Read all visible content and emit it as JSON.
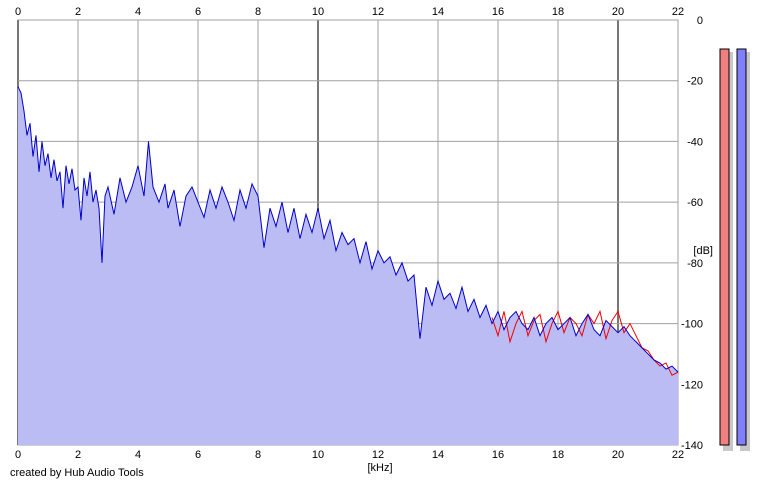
{
  "credit": "created by Hub Audio Tools",
  "chart_data": {
    "type": "area",
    "xlabel": "[kHz]",
    "ylabel": "[dB]",
    "xlim": [
      0,
      22
    ],
    "ylim": [
      -140,
      0
    ],
    "xticks": [
      0,
      2,
      4,
      6,
      8,
      10,
      12,
      14,
      16,
      18,
      20,
      22
    ],
    "yticks": [
      0,
      -20,
      -40,
      -60,
      -80,
      -100,
      -120,
      -140
    ],
    "grid": true,
    "series": [
      {
        "color": "#0000cc",
        "fill": "#bcbcf5",
        "x": [
          0,
          0.1,
          0.2,
          0.3,
          0.4,
          0.5,
          0.6,
          0.7,
          0.8,
          0.9,
          1.0,
          1.1,
          1.2,
          1.3,
          1.4,
          1.5,
          1.6,
          1.7,
          1.8,
          1.9,
          2.0,
          2.1,
          2.2,
          2.3,
          2.4,
          2.5,
          2.6,
          2.7,
          2.8,
          2.9,
          3.0,
          3.2,
          3.4,
          3.6,
          3.8,
          4.0,
          4.2,
          4.35,
          4.5,
          4.7,
          4.9,
          5.0,
          5.2,
          5.4,
          5.6,
          5.8,
          6.0,
          6.2,
          6.4,
          6.6,
          6.8,
          7.0,
          7.2,
          7.4,
          7.6,
          7.8,
          8.0,
          8.2,
          8.4,
          8.6,
          8.8,
          9.0,
          9.2,
          9.4,
          9.6,
          9.8,
          10.0,
          10.2,
          10.4,
          10.6,
          10.8,
          11.0,
          11.2,
          11.4,
          11.6,
          11.8,
          12.0,
          12.2,
          12.4,
          12.6,
          12.8,
          13.0,
          13.2,
          13.4,
          13.6,
          13.8,
          14.0,
          14.2,
          14.4,
          14.6,
          14.8,
          15.0,
          15.2,
          15.4,
          15.6,
          15.8,
          16.0,
          16.2,
          16.4,
          16.6,
          16.8,
          17.0,
          17.2,
          17.4,
          17.6,
          17.8,
          18.0,
          18.2,
          18.4,
          18.6,
          18.8,
          19.0,
          19.2,
          19.4,
          19.6,
          19.8,
          20.0,
          20.2,
          20.4,
          20.6,
          20.8,
          21.0,
          21.2,
          21.4,
          21.6,
          21.8,
          22.0
        ],
        "values": [
          -22,
          -24,
          -30,
          -38,
          -34,
          -45,
          -38,
          -50,
          -40,
          -48,
          -44,
          -52,
          -46,
          -53,
          -50,
          -62,
          -48,
          -54,
          -49,
          -56,
          -55,
          -66,
          -52,
          -58,
          -50,
          -60,
          -56,
          -62,
          -80,
          -58,
          -55,
          -64,
          -52,
          -60,
          -55,
          -48,
          -58,
          -40,
          -55,
          -60,
          -54,
          -62,
          -56,
          -68,
          -58,
          -55,
          -60,
          -65,
          -56,
          -62,
          -55,
          -60,
          -66,
          -56,
          -62,
          -54,
          -58,
          -75,
          -62,
          -68,
          -60,
          -70,
          -62,
          -72,
          -64,
          -70,
          -62,
          -72,
          -66,
          -76,
          -70,
          -74,
          -72,
          -80,
          -73,
          -82,
          -76,
          -80,
          -78,
          -84,
          -80,
          -86,
          -84,
          -105,
          -88,
          -94,
          -86,
          -92,
          -90,
          -95,
          -88,
          -96,
          -92,
          -98,
          -94,
          -100,
          -96,
          -102,
          -98,
          -96,
          -100,
          -102,
          -98,
          -104,
          -100,
          -98,
          -102,
          -100,
          -98,
          -104,
          -100,
          -97,
          -102,
          -104,
          -99,
          -101,
          -103,
          -101,
          -104,
          -106,
          -108,
          -110,
          -112,
          -113,
          -115,
          -114,
          -116
        ]
      },
      {
        "color": "#ee0000",
        "x": [
          15.8,
          16.0,
          16.2,
          16.4,
          16.6,
          16.8,
          17.0,
          17.2,
          17.4,
          17.6,
          17.8,
          18.0,
          18.2,
          18.4,
          18.6,
          18.8,
          19.0,
          19.2,
          19.4,
          19.6,
          19.8,
          20.0,
          20.2,
          20.4,
          20.6,
          20.8,
          21.0,
          21.2,
          21.4,
          21.6,
          21.8,
          22.0
        ],
        "values": [
          -98,
          -104,
          -96,
          -106,
          -100,
          -96,
          -104,
          -99,
          -97,
          -106,
          -100,
          -96,
          -103,
          -98,
          -100,
          -104,
          -97,
          -100,
          -96,
          -105,
          -99,
          -96,
          -103,
          -100,
          -104,
          -108,
          -109,
          -112,
          -114,
          -113,
          -117,
          -116
        ]
      }
    ],
    "meters": [
      {
        "color": "#f08080",
        "value": -140
      },
      {
        "color": "#8080ff",
        "value": -140
      }
    ]
  }
}
